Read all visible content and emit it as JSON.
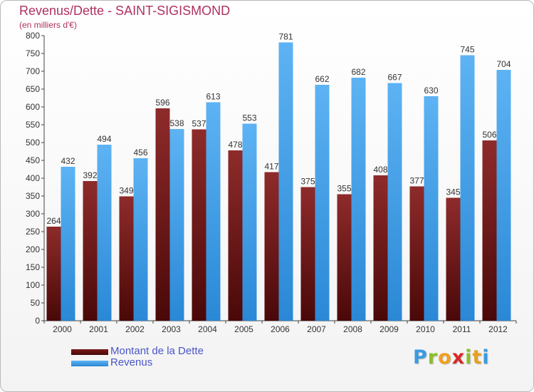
{
  "chart_data": {
    "type": "bar",
    "title": "Revenus/Dette - SAINT-SIGISMOND",
    "subtitle": "(en milliers d'€)",
    "xlabel": "",
    "ylabel": "",
    "ylim": [
      0,
      800
    ],
    "ytick_step": 50,
    "grid": false,
    "legend_position": "bottom-left",
    "categories": [
      "2000",
      "2001",
      "2002",
      "2003",
      "2004",
      "2005",
      "2006",
      "2007",
      "2008",
      "2009",
      "2010",
      "2011",
      "2012"
    ],
    "series": [
      {
        "name": "Montant de la Dette",
        "color": "#7a1a1a",
        "values": [
          264,
          392,
          349,
          596,
          537,
          478,
          417,
          375,
          355,
          408,
          377,
          345,
          506
        ]
      },
      {
        "name": "Revenus",
        "color": "#3f9fe6",
        "values": [
          432,
          494,
          456,
          538,
          613,
          553,
          781,
          662,
          682,
          667,
          630,
          745,
          704
        ]
      }
    ]
  },
  "logo": {
    "letters": [
      "P",
      "r",
      "o",
      "x",
      "i",
      "t",
      "i"
    ],
    "colors": [
      "#3a9be0",
      "#8bbf2a",
      "#f0a020",
      "#d82828",
      "#8bbf2a",
      "#e8a020",
      "#3a9be0"
    ]
  }
}
